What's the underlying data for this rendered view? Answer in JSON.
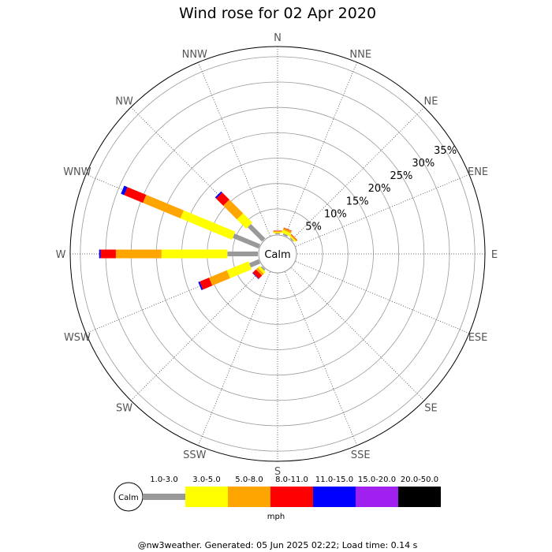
{
  "chart_data": {
    "type": "wind-rose",
    "title": "Wind rose for 02 Apr 2020",
    "center_label": "Calm",
    "directions": [
      "N",
      "NNE",
      "NE",
      "ENE",
      "E",
      "ESE",
      "SE",
      "SSE",
      "S",
      "SSW",
      "SW",
      "WSW",
      "W",
      "WNW",
      "NW",
      "NNW"
    ],
    "ring_labels": [
      "5%",
      "10%",
      "15%",
      "20%",
      "25%",
      "30%",
      "35%"
    ],
    "rmax_percent": 37,
    "grid": true,
    "speed_bins": [
      "1.0-3.0",
      "3.0-5.0",
      "5.0-8.0",
      "8.0-11.0",
      "11.0-15.0",
      "15.0-20.0",
      "20.0-50.0"
    ],
    "bin_colors": [
      "#999999",
      "#ffff00",
      "#ffa500",
      "#ff0000",
      "#0000ff",
      "#a020f0",
      "#000000"
    ],
    "units": "mph",
    "note": "segments are cumulative percent frequencies per direction, outward from the calm circle",
    "series": [
      {
        "direction": "N",
        "cumulative": [
          0.2,
          0.4,
          0.6,
          0.7,
          0.7,
          0.7,
          0.7
        ]
      },
      {
        "direction": "NNE",
        "cumulative": [
          0.3,
          0.9,
          1.3,
          1.4,
          1.4,
          1.4,
          1.4
        ]
      },
      {
        "direction": "NE",
        "cumulative": [
          0.2,
          0.5,
          0.7,
          0.8,
          0.8,
          0.8,
          0.8
        ]
      },
      {
        "direction": "NW",
        "cumulative": [
          4.0,
          6.6,
          10.4,
          12.4,
          12.7,
          12.7,
          12.7
        ]
      },
      {
        "direction": "WNW",
        "cumulative": [
          5.5,
          16.5,
          24.5,
          28.5,
          29.2,
          29.2,
          29.2
        ]
      },
      {
        "direction": "W",
        "cumulative": [
          6.0,
          19.0,
          28.0,
          31.0,
          31.3,
          31.3,
          31.3
        ]
      },
      {
        "direction": "WSW",
        "cumulative": [
          2.0,
          6.6,
          10.4,
          12.4,
          12.7,
          12.7,
          12.7
        ]
      },
      {
        "direction": "SW",
        "cumulative": [
          0.3,
          0.8,
          1.3,
          2.2,
          2.3,
          2.3,
          2.3
        ]
      }
    ]
  },
  "legend": {
    "calm_label": "Calm",
    "units_label": "mph"
  },
  "footer": {
    "text": "@nw3weather. Generated: 05 Jun 2025 02:22; Load time: 0.14 s"
  }
}
